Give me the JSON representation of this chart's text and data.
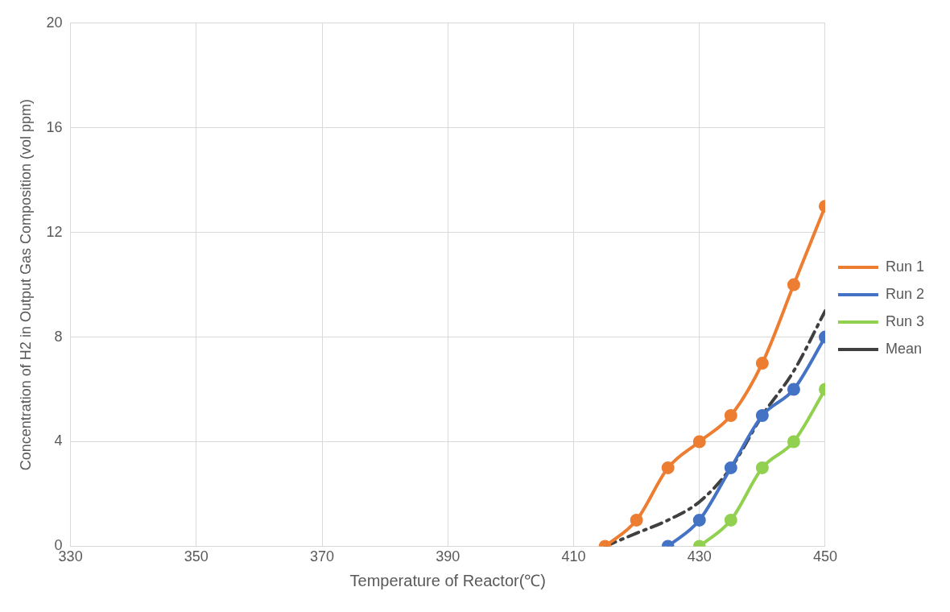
{
  "chart_data": {
    "type": "line",
    "xlabel": "Temperature of Reactor(℃)",
    "ylabel": "Concentration of H2 in Output Gas Composition (vol ppm)",
    "xlim": [
      330,
      450
    ],
    "xticks": [
      330,
      350,
      370,
      390,
      410,
      430,
      450
    ],
    "ylim": [
      0,
      20
    ],
    "yticks": [
      0,
      4,
      8,
      12,
      16,
      20
    ],
    "grid": true,
    "legend": "right",
    "marker": "circle",
    "line_style": "solid",
    "series": [
      {
        "name": "Run 1",
        "color": "#ed7d31",
        "x": [
          415,
          420,
          425,
          430,
          435,
          440,
          445,
          450
        ],
        "values": [
          0,
          1,
          3,
          4,
          5,
          7,
          10,
          13
        ]
      },
      {
        "name": "Run 2",
        "color": "#4472c4",
        "x": [
          425,
          430,
          435,
          440,
          445,
          450
        ],
        "values": [
          0,
          1,
          3,
          5,
          6,
          8
        ]
      },
      {
        "name": "Run 3",
        "color": "#92d050",
        "x": [
          430,
          435,
          440,
          445,
          450
        ],
        "values": [
          0,
          1,
          3,
          4,
          6
        ]
      },
      {
        "name": "Mean",
        "color": "#404040",
        "marker": "none",
        "line_style": "dashed",
        "x": [
          415,
          420,
          425,
          430,
          435,
          440,
          445,
          450
        ],
        "values": [
          0,
          0.5,
          1,
          1.7,
          3,
          5,
          6.7,
          9
        ]
      }
    ]
  }
}
